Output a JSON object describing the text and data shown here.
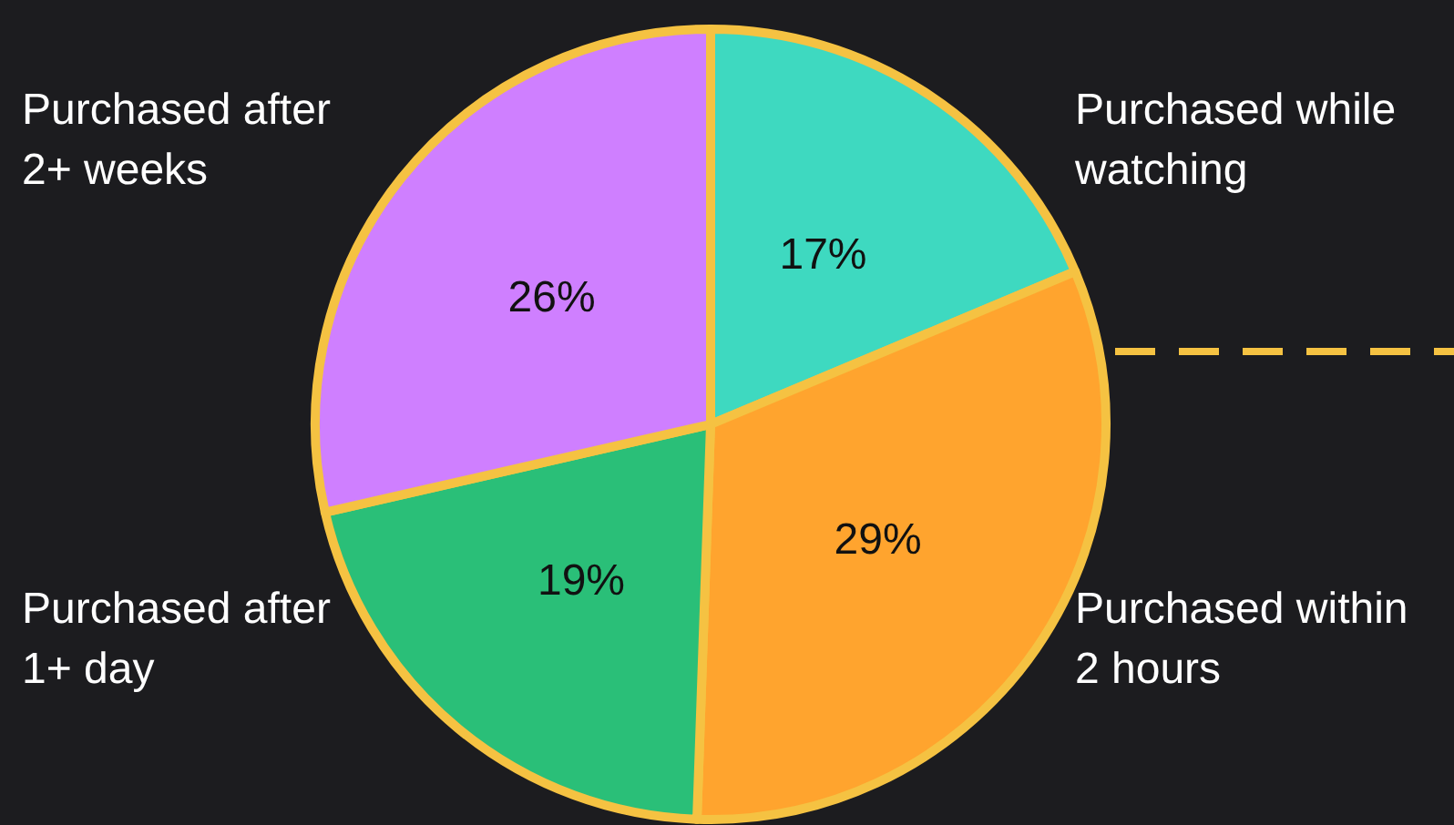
{
  "chart_data": {
    "type": "pie",
    "categories": [
      "Purchased while watching",
      "Purchased within 2 hours",
      "Purchased after 1+ day",
      "Purchased after 2+ weeks"
    ],
    "values": [
      17,
      29,
      19,
      26
    ],
    "colors": [
      "#3ed9c0",
      "#ffa42e",
      "#2abf78",
      "#cf7fff"
    ],
    "value_labels": [
      "17%",
      "29%",
      "19%",
      "26%"
    ]
  }
}
